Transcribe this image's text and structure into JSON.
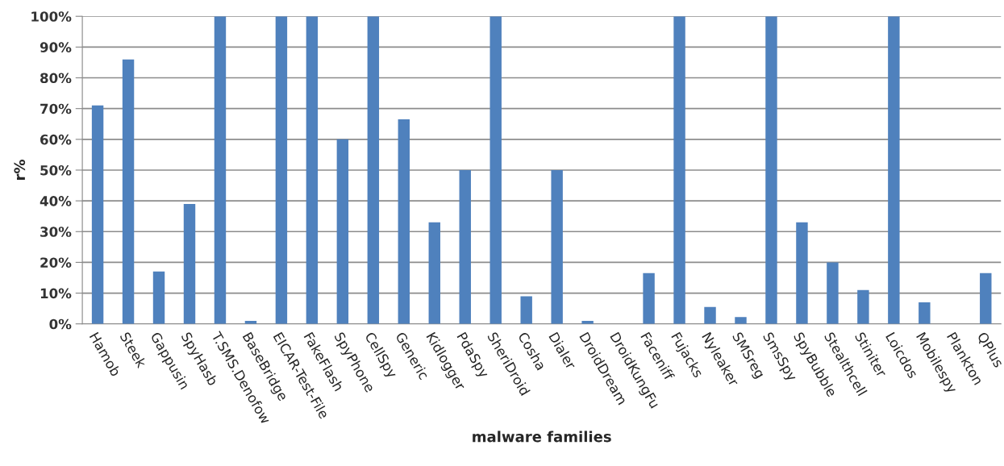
{
  "chart_data": {
    "type": "bar",
    "xlabel": "malware families",
    "ylabel": "r%",
    "categories": [
      "Hamob",
      "Steek",
      "Gappusin",
      "SpyHasb",
      "T.SMS.Denofow",
      "BaseBridge",
      "EICAR-Test-File",
      "FakeFlash",
      "SpyPhone",
      "CellSpy",
      "Generic",
      "Kidlogger",
      "PdaSpy",
      "SheriDroid",
      "Cosha",
      "Dialer",
      "DroidDream",
      "DroidKungFu",
      "Faceniff",
      "Fujacks",
      "Nyleaker",
      "SMSreg",
      "SmsSpy",
      "SpyBubble",
      "Stealthcell",
      "Stiniter",
      "Loicdos",
      "Mobilespy",
      "Plankton",
      "QPlus"
    ],
    "values": [
      71,
      86,
      17,
      39,
      100,
      1,
      100,
      100,
      60,
      100,
      66.5,
      33,
      50,
      100,
      9,
      50,
      1,
      0,
      16.5,
      100,
      5.5,
      2.2,
      100,
      33,
      20,
      11,
      100,
      7,
      0,
      16.5
    ],
    "color": "#4f81bd",
    "ylim": [
      0,
      100
    ],
    "yticks": [
      {
        "value": 0,
        "label": "0%"
      },
      {
        "value": 10,
        "label": "10%"
      },
      {
        "value": 20,
        "label": "20%"
      },
      {
        "value": 30,
        "label": "30%"
      },
      {
        "value": 40,
        "label": "40%"
      },
      {
        "value": 50,
        "label": "50%"
      },
      {
        "value": 60,
        "label": "60%"
      },
      {
        "value": 70,
        "label": "70%"
      },
      {
        "value": 80,
        "label": "80%"
      },
      {
        "value": 90,
        "label": "90%"
      },
      {
        "value": 100,
        "label": "100%"
      }
    ],
    "grid": "y"
  }
}
